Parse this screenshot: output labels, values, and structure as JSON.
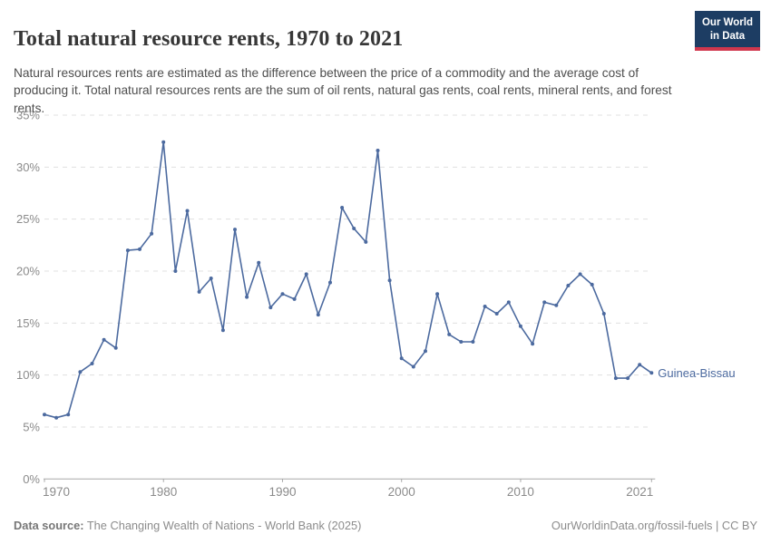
{
  "header": {
    "title": "Total natural resource rents, 1970 to 2021",
    "subtitle": "Natural resources rents are estimated as the difference between the price of a commodity and the average cost of producing it. Total natural resources rents are the sum of oil rents, natural gas rents, coal rents, mineral rents, and forest rents.",
    "logo_line1": "Our World",
    "logo_line2": "in Data"
  },
  "chart_data": {
    "type": "line",
    "title": "Total natural resource rents, 1970 to 2021",
    "xlabel": "",
    "ylabel": "",
    "xlim": [
      1970,
      2021
    ],
    "ylim": [
      0,
      35
    ],
    "grid": "horizontal-dashed",
    "legend_position": "end-of-line-label",
    "x_ticks": [
      1970,
      1980,
      1990,
      2000,
      2010,
      2021
    ],
    "y_ticks": [
      "0%",
      "5%",
      "10%",
      "15%",
      "20%",
      "25%",
      "30%",
      "35%"
    ],
    "series": [
      {
        "name": "Guinea-Bissau",
        "color": "#4c6a9f",
        "x": [
          1970,
          1971,
          1972,
          1973,
          1974,
          1975,
          1976,
          1977,
          1978,
          1979,
          1980,
          1981,
          1982,
          1983,
          1984,
          1985,
          1986,
          1987,
          1988,
          1989,
          1990,
          1991,
          1992,
          1993,
          1994,
          1995,
          1996,
          1997,
          1998,
          1999,
          2000,
          2001,
          2002,
          2003,
          2004,
          2005,
          2006,
          2007,
          2008,
          2009,
          2010,
          2011,
          2012,
          2013,
          2014,
          2015,
          2016,
          2017,
          2018,
          2019,
          2020,
          2021
        ],
        "values": [
          6.2,
          5.9,
          6.2,
          10.3,
          11.1,
          13.4,
          12.6,
          22.0,
          22.1,
          23.6,
          32.4,
          20.0,
          25.8,
          18.0,
          19.3,
          14.3,
          24.0,
          17.5,
          20.8,
          16.5,
          17.8,
          17.3,
          19.7,
          15.8,
          18.9,
          26.1,
          24.1,
          22.8,
          31.6,
          19.1,
          11.6,
          10.8,
          12.3,
          17.8,
          13.9,
          13.2,
          13.2,
          16.6,
          15.9,
          17.0,
          14.7,
          13.0,
          17.0,
          16.7,
          18.6,
          19.7,
          18.7,
          15.9,
          9.7,
          9.7,
          11.0,
          10.2
        ]
      }
    ]
  },
  "footer": {
    "source_label": "Data source:",
    "source_text": " The Changing Wealth of Nations - World Bank (2025)",
    "credit": "OurWorldinData.org/fossil-fuels | CC BY"
  },
  "colors": {
    "line": "#4c6a9f",
    "logo_bg": "#1d3d63",
    "logo_red": "#d0374d",
    "grid": "#e0e0e0",
    "axis": "#a8a8a8",
    "tick_label": "#8b8b8b",
    "title_text": "#373737",
    "subtitle_text": "#4e4e4e",
    "footer_text": "#8c8c8c"
  }
}
